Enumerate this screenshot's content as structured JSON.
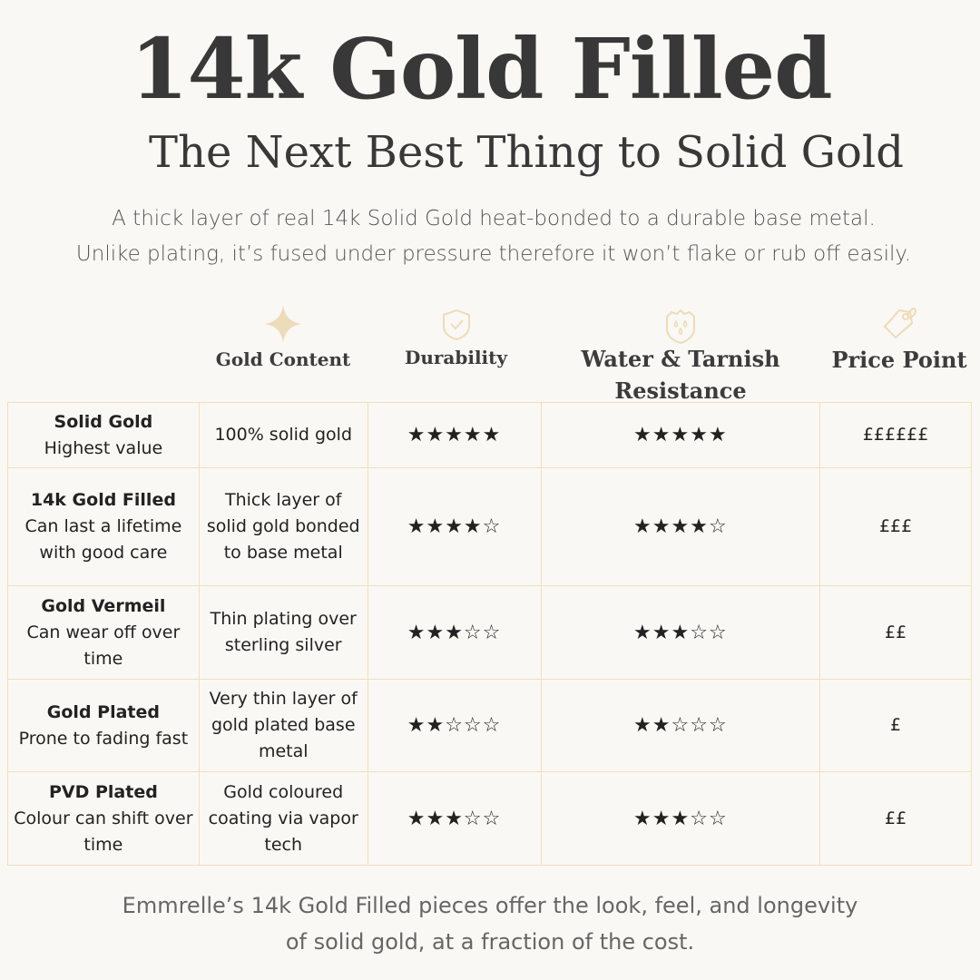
{
  "title": "14k Gold Filled",
  "subtitle": "The Next Best Thing to Solid Gold",
  "intro": [
    "A thick layer of real 14k Solid Gold heat-bonded to a durable base metal.",
    "Unlike plating, it’s fused under pressure therefore it won’t flake or rub off easily."
  ],
  "accent_color": "#eddcb8",
  "columns": [
    {
      "label": "Gold Content",
      "icon": "sparkle-icon"
    },
    {
      "label": "Durability",
      "icon": "shield-check-icon"
    },
    {
      "label": "Water &  Tarnish Resistance",
      "icon": "shield-droplets-icon"
    },
    {
      "label": "Price Point",
      "icon": "price-tag-icon"
    }
  ],
  "rows": [
    {
      "name": "Solid Gold",
      "desc": "Highest value",
      "content": "100% solid gold",
      "durability": "★★★★★",
      "resistance": "★★★★★",
      "price": "££££££"
    },
    {
      "name": "14k Gold Filled",
      "desc": "Can last a lifetime with good care",
      "content": "Thick layer of solid gold bonded to base metal",
      "durability": "★★★★☆",
      "resistance": "★★★★☆",
      "price": "£££"
    },
    {
      "name": "Gold Vermeil",
      "desc": "Can wear off over time",
      "content": "Thin plating over sterling silver",
      "durability": "★★★☆☆",
      "resistance": "★★★☆☆",
      "price": "££"
    },
    {
      "name": "Gold Plated",
      "desc": "Prone to fading fast",
      "content": "Very thin layer of gold plated base metal",
      "durability": "★★☆☆☆",
      "resistance": "★★☆☆☆",
      "price": "£"
    },
    {
      "name": "PVD Plated",
      "desc": "Colour can shift over time",
      "content": "Gold coloured coating via vapor tech",
      "durability": "★★★☆☆",
      "resistance": "★★★☆☆",
      "price": "££"
    }
  ],
  "footer": [
    "Emmrelle’s 14k Gold Filled pieces offer the look, feel, and longevity",
    "of solid gold, at a fraction of the cost."
  ]
}
